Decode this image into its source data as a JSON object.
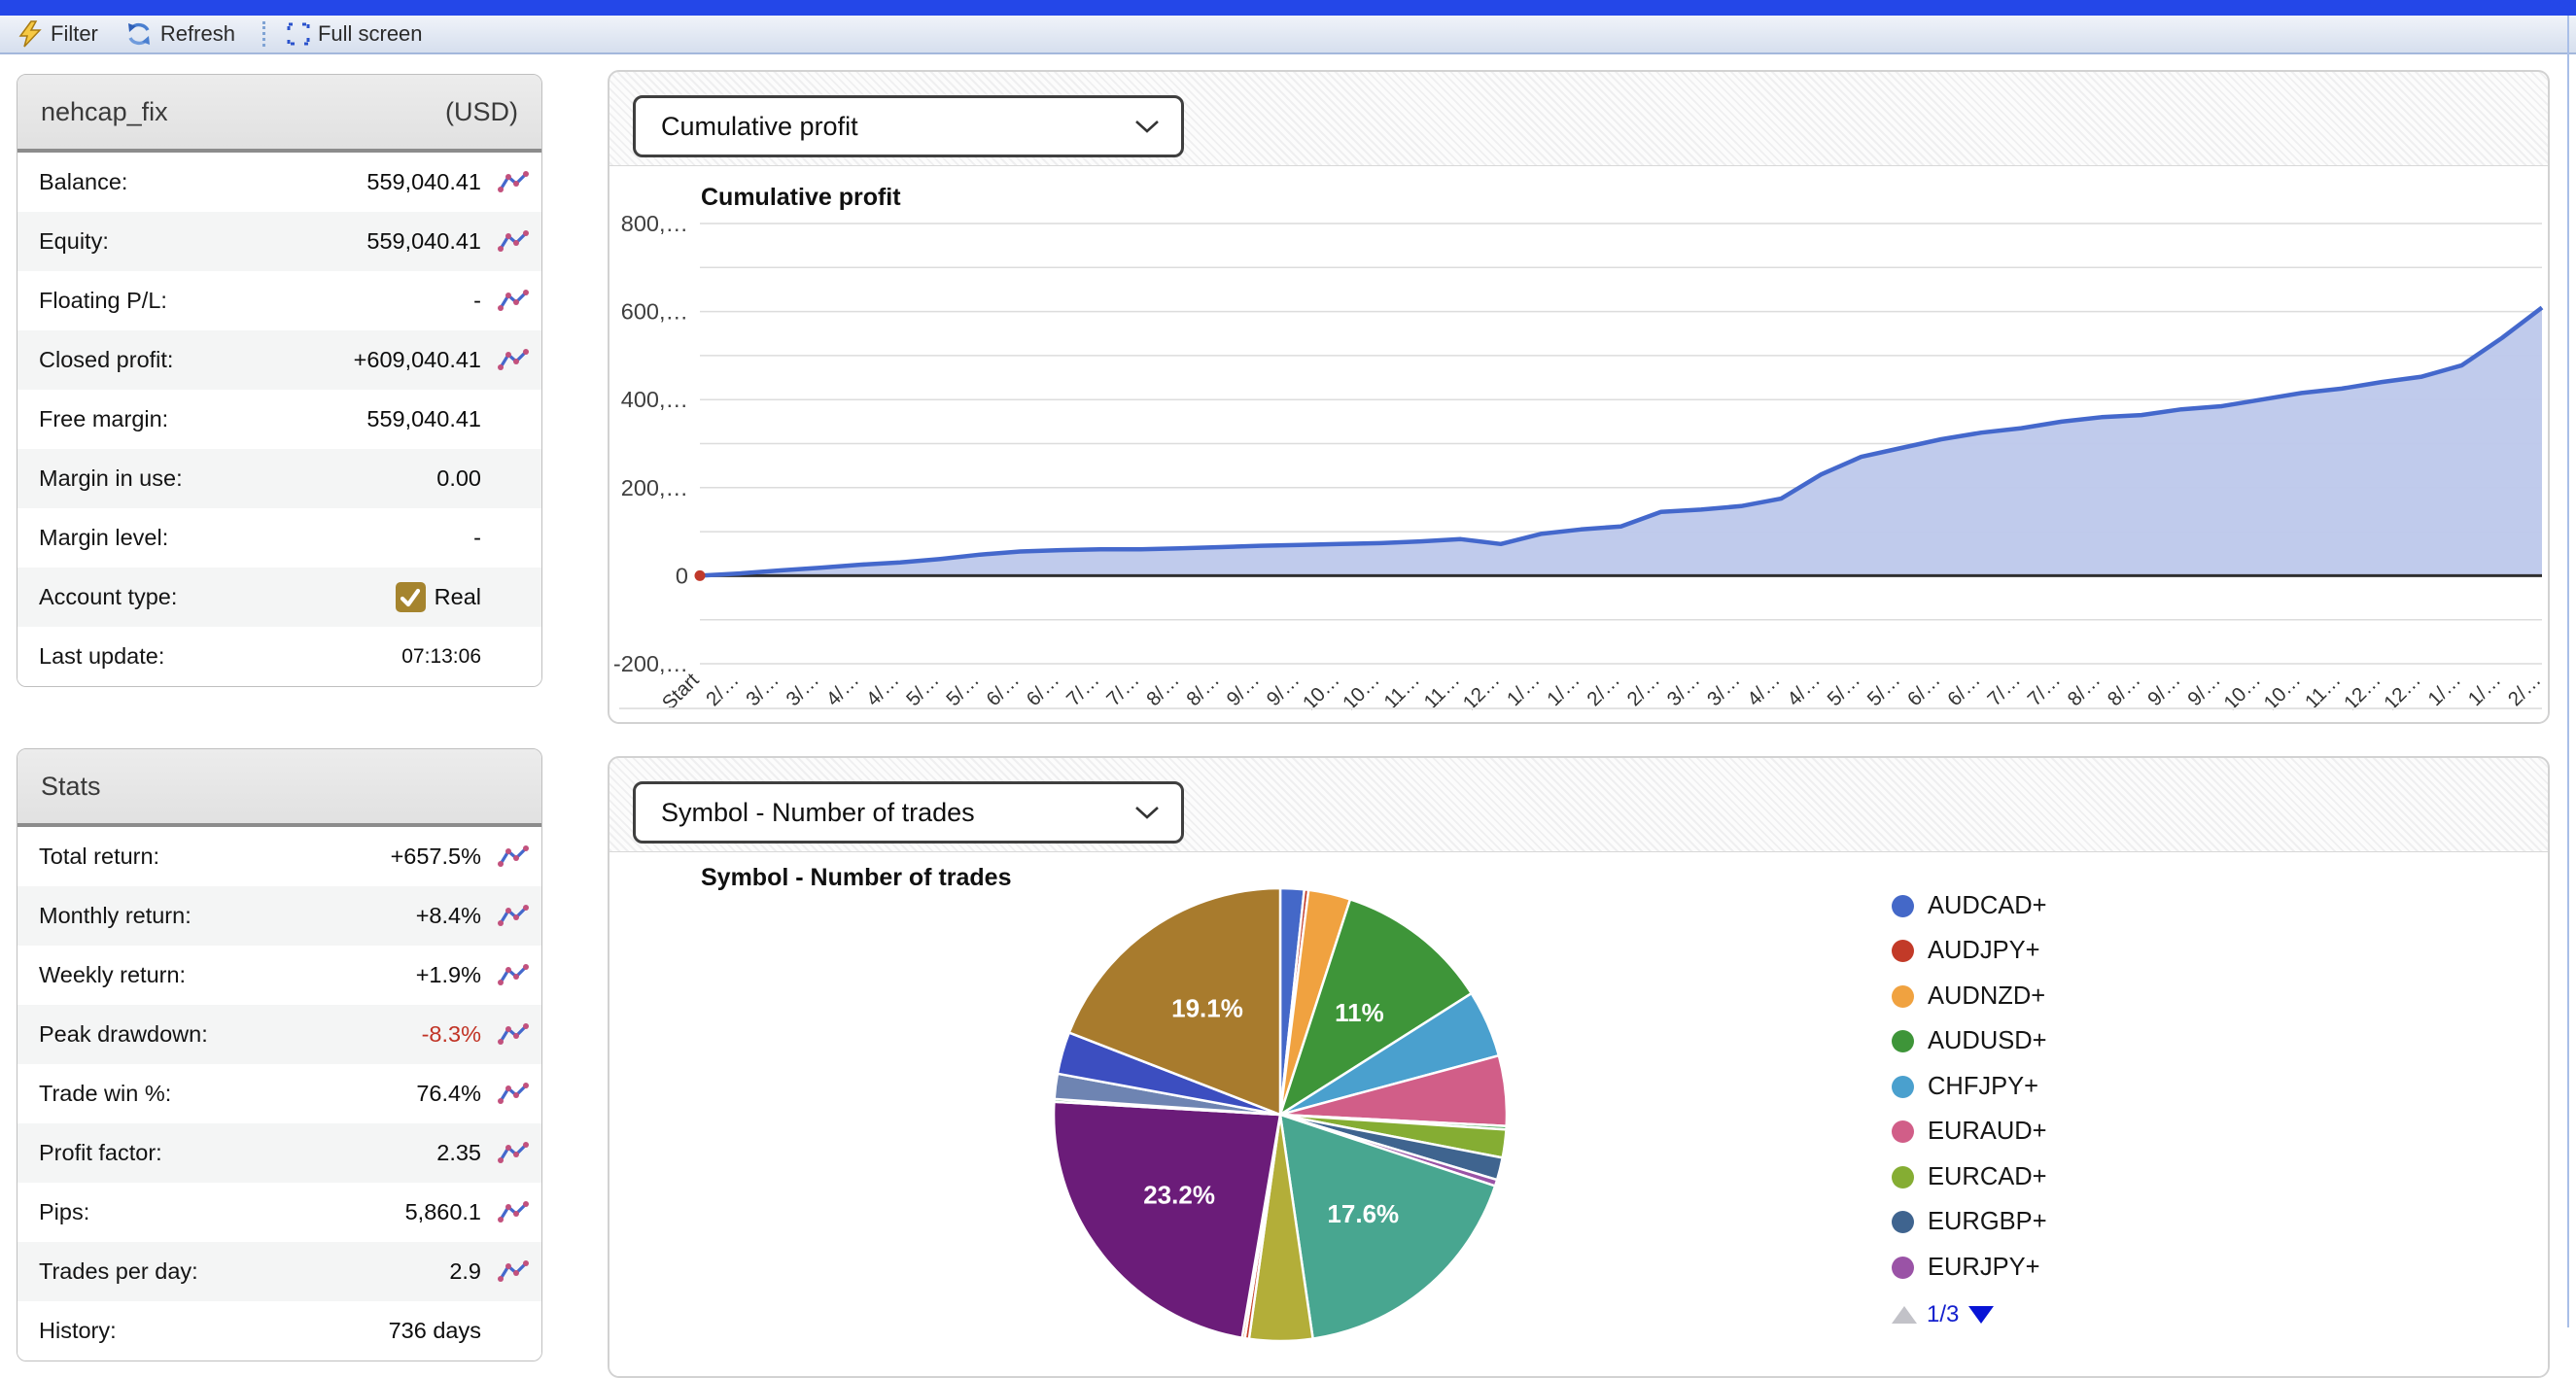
{
  "toolbar": {
    "filter": "Filter",
    "refresh": "Refresh",
    "fullscreen": "Full screen"
  },
  "icons": {
    "filter": "lightning-icon",
    "refresh": "circular-arrows-icon",
    "fullscreen": "dashed-corners-icon",
    "row_metric": "mini-line-chart-icon",
    "account_type": "gold-checkbox-check-icon",
    "dropdown": "chevron-down-icon",
    "legend_prev": "triangle-up-icon",
    "legend_next": "triangle-down-icon"
  },
  "account_panel": {
    "title": "nehcap_fix",
    "currency": "(USD)",
    "rows": [
      {
        "label": "Balance:",
        "value": "559,040.41",
        "icon": true
      },
      {
        "label": "Equity:",
        "value": "559,040.41",
        "icon": true
      },
      {
        "label": "Floating P/L:",
        "value": "-",
        "icon": true
      },
      {
        "label": "Closed profit:",
        "value": "+609,040.41",
        "icon": true
      },
      {
        "label": "Free margin:",
        "value": "559,040.41"
      },
      {
        "label": "Margin in use:",
        "value": "0.00"
      },
      {
        "label": "Margin level:",
        "value": "-"
      },
      {
        "label": "Account type:",
        "value": "Real",
        "checkbox": true
      },
      {
        "label": "Last update:",
        "value": "07:13:06",
        "small": true
      }
    ]
  },
  "stats_panel": {
    "title": "Stats",
    "rows": [
      {
        "label": "Total return:",
        "value": "+657.5%",
        "icon": true
      },
      {
        "label": "Monthly return:",
        "value": "+8.4%",
        "icon": true
      },
      {
        "label": "Weekly return:",
        "value": "+1.9%",
        "icon": true
      },
      {
        "label": "Peak drawdown:",
        "value": "-8.3%",
        "icon": true,
        "negative": true
      },
      {
        "label": "Trade win %:",
        "value": "76.4%",
        "icon": true
      },
      {
        "label": "Profit factor:",
        "value": "2.35",
        "icon": true
      },
      {
        "label": "Pips:",
        "value": "5,860.1",
        "icon": true
      },
      {
        "label": "Trades per day:",
        "value": "2.9",
        "icon": true
      },
      {
        "label": "History:",
        "value": "736 days"
      }
    ]
  },
  "cumulative_section": {
    "dropdown_value": "Cumulative profit"
  },
  "symbol_section": {
    "dropdown_value": "Symbol - Number of trades",
    "legend_page": "1/3"
  },
  "colors": {
    "accent_blue_bar": "#2447E8",
    "line": "#4468CC",
    "area_fill": "#BDC8EB",
    "zero_axis": "#2F2F2F",
    "gridline": "#DCDCDC",
    "negative_value": "#C13325",
    "checkbox_gold": "#A5842E",
    "start_marker": "#C0392B"
  },
  "chart_data": [
    {
      "type": "area",
      "title": "Cumulative profit",
      "ylabel": "",
      "xlabel": "",
      "ylim": [
        -200000,
        800000
      ],
      "grid": true,
      "gridline_step": 100000,
      "y_tick_labels": [
        "800,…",
        "600,…",
        "400,…",
        "200,…",
        "0",
        "-200,…"
      ],
      "y_tick_values": [
        800000,
        600000,
        400000,
        200000,
        0,
        -200000
      ],
      "x_labels": [
        "Start",
        "2/…",
        "3/…",
        "3/…",
        "4/…",
        "4/…",
        "5/…",
        "5/…",
        "6/…",
        "6/…",
        "7/…",
        "7/…",
        "8/…",
        "8/…",
        "9/…",
        "9/…",
        "10…",
        "10…",
        "11…",
        "11…",
        "12…",
        "1/…",
        "1/…",
        "2/…",
        "2/…",
        "3/…",
        "3/…",
        "4/…",
        "4/…",
        "5/…",
        "5/…",
        "6/…",
        "6/…",
        "7/…",
        "7/…",
        "8/…",
        "8/…",
        "9/…",
        "9/…",
        "10…",
        "10…",
        "11…",
        "12…",
        "12…",
        "1/…",
        "1/…",
        "2/…"
      ],
      "values": [
        0,
        5000,
        12000,
        18000,
        25000,
        30000,
        38000,
        48000,
        55000,
        58000,
        60000,
        60000,
        62000,
        65000,
        68000,
        70000,
        72000,
        74000,
        78000,
        83000,
        72000,
        95000,
        105000,
        112000,
        145000,
        150000,
        158000,
        175000,
        230000,
        270000,
        290000,
        310000,
        325000,
        335000,
        350000,
        360000,
        365000,
        378000,
        385000,
        400000,
        415000,
        425000,
        440000,
        452000,
        478000,
        540000,
        609000
      ]
    },
    {
      "type": "pie",
      "title": "Symbol - Number of trades",
      "legend_position": "right",
      "slices": [
        {
          "name": "AUDCAD+",
          "value": 1.7,
          "color": "#4468C8"
        },
        {
          "name": "AUDJPY+",
          "value": 0.3,
          "color": "#C23A28"
        },
        {
          "name": "AUDNZD+",
          "value": 3.0,
          "color": "#F0A240"
        },
        {
          "name": "AUDUSD+",
          "value": 11.0,
          "color": "#3E9539",
          "label": "11%"
        },
        {
          "name": "CHFJPY+",
          "value": 4.8,
          "color": "#4AA0CE"
        },
        {
          "name": "EURAUD+",
          "value": 5.0,
          "color": "#D15E88"
        },
        {
          "name": "",
          "value": 0.25,
          "color": "#5BB56A"
        },
        {
          "name": "EURCAD+",
          "value": 2.0,
          "color": "#85AD33"
        },
        {
          "name": "EURGBP+",
          "value": 1.6,
          "color": "#3F648F"
        },
        {
          "name": "EURJPY+",
          "value": 0.45,
          "color": "#9A53A6"
        },
        {
          "name": "",
          "value": 17.6,
          "color": "#48A690",
          "label": "17.6%"
        },
        {
          "name": "",
          "value": 4.5,
          "color": "#B3AE39"
        },
        {
          "name": "",
          "value": 0.3,
          "color": "#C8432B"
        },
        {
          "name": "",
          "value": 0.2,
          "color": "#E08030"
        },
        {
          "name": "",
          "value": 23.2,
          "color": "#6B1C79",
          "label": "23.2%"
        },
        {
          "name": "",
          "value": 0.2,
          "color": "#2F8F4E"
        },
        {
          "name": "",
          "value": 1.8,
          "color": "#6E84B2"
        },
        {
          "name": "",
          "value": 3.0,
          "color": "#3C4EC0"
        },
        {
          "name": "",
          "value": 19.1,
          "color": "#A87B2D",
          "label": "19.1%"
        }
      ],
      "legend": [
        {
          "label": "AUDCAD+",
          "color": "#4468C8"
        },
        {
          "label": "AUDJPY+",
          "color": "#C23A28"
        },
        {
          "label": "AUDNZD+",
          "color": "#F0A240"
        },
        {
          "label": "AUDUSD+",
          "color": "#3E9539"
        },
        {
          "label": "CHFJPY+",
          "color": "#4AA0CE"
        },
        {
          "label": "EURAUD+",
          "color": "#D15E88"
        },
        {
          "label": "EURCAD+",
          "color": "#85AD33"
        },
        {
          "label": "EURGBP+",
          "color": "#3F648F"
        },
        {
          "label": "EURJPY+",
          "color": "#9A53A6"
        }
      ]
    }
  ]
}
